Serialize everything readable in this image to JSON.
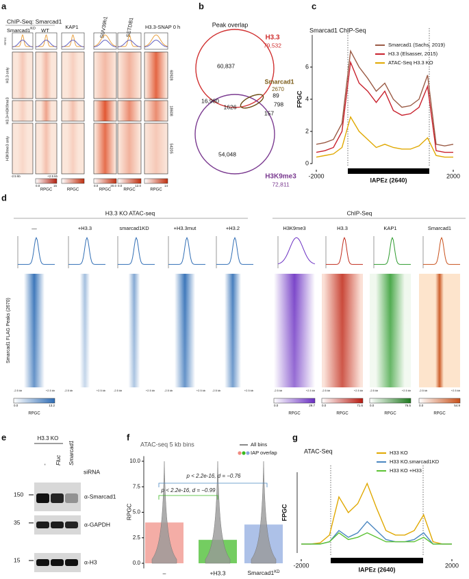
{
  "panel_a": {
    "letter": "a",
    "title": "ChIP-Seq: Smarcad1",
    "ko_label": {
      "base": "Smarcad1",
      "sup": "KO"
    },
    "columns": [
      "WT",
      "KAP1",
      "SUV39h1",
      "SETDB1",
      "H3.3-SNAP 0 h"
    ],
    "profile_axis": "RPGC",
    "rows": [
      "H3.3 only",
      "H3.3+H3K9me3",
      "H3K9me3 only"
    ],
    "row_counts": [
      "60928",
      "18608",
      "54205"
    ],
    "range_labels": [
      "-2.5 kb",
      "+2.5 kb"
    ],
    "colorbars": [
      {
        "min": "0.0",
        "max": "15",
        "label": "RPGC"
      },
      {
        "label": "RPGC"
      },
      {
        "min": "0.0",
        "max": "20.0",
        "label": "RPGC"
      },
      {
        "min": "0.0",
        "max": "12.0",
        "label": "RPGC"
      },
      {
        "max": "14",
        "label": "RPGC"
      }
    ]
  },
  "panel_b": {
    "letter": "b",
    "title": "Peak overlap",
    "sets": [
      {
        "name": "H3.3",
        "total": "79,532"
      },
      {
        "name": "Smarcad1",
        "total": "2670"
      },
      {
        "name": "H3K9me3",
        "total": "72,811"
      }
    ],
    "regions": [
      "60,837",
      "16,980",
      "1626",
      "89",
      "798",
      "157",
      "54,048"
    ]
  },
  "panel_c": {
    "letter": "c",
    "chart": {
      "type": "line",
      "title": "Smarcad1 ChIP-Seq",
      "y_label": "FPGC",
      "region_label": "IAPEz (2640)",
      "x": [
        -2000,
        -1750,
        -1500,
        -1250,
        -1000,
        -750,
        -500,
        -250,
        0,
        250,
        500,
        750,
        1000,
        1250,
        1500,
        1750,
        2000
      ],
      "xlim": [
        -2000,
        2000
      ],
      "xticks": [
        -2000,
        2000
      ],
      "ylim": [
        0,
        8
      ],
      "yticks": [
        0,
        2,
        4,
        6
      ],
      "series": [
        {
          "name": "Smarcad1 (Sachs, 2019)",
          "color": "#9a5a44",
          "values": [
            1.2,
            1.3,
            1.5,
            2.5,
            7.0,
            6.0,
            5.3,
            4.5,
            5.0,
            4.0,
            3.5,
            3.6,
            4.0,
            5.5,
            1.2,
            1.1,
            1.2
          ]
        },
        {
          "name": "H3.3 (Elsasser, 2015)",
          "color": "#c8202c",
          "values": [
            0.7,
            0.8,
            1.0,
            2.0,
            6.3,
            5.0,
            4.5,
            3.8,
            4.5,
            3.3,
            3.0,
            3.1,
            3.5,
            4.8,
            0.8,
            0.7,
            0.7
          ]
        },
        {
          "name": "ATAC-Seq H3.3 KO",
          "color": "#e0a800",
          "values": [
            0.4,
            0.5,
            0.6,
            1.0,
            2.9,
            2.0,
            1.5,
            1.0,
            1.2,
            1.0,
            0.9,
            0.9,
            1.1,
            1.6,
            0.5,
            0.4,
            0.4
          ]
        }
      ]
    }
  },
  "panel_d": {
    "letter": "d",
    "atac_header": "H3.3 KO ATAC-seq",
    "chip_header": "ChIP-Seq",
    "columns": [
      "—",
      "+H3.3",
      "smarcad1KD",
      "+H3.3mut",
      "+H3.2",
      "H3K9me3",
      "H3.3",
      "KAP1",
      "Smarcad1"
    ],
    "row_label": "Smarcad1 FLAG Peaks (2670)",
    "range_labels": [
      "-2.5 kb",
      "+2.5 kb"
    ],
    "colorbars": [
      {
        "min": "0.0",
        "max": "13.2",
        "label": "RPGC"
      },
      {
        "min": "0.0",
        "max": "29.7",
        "label": "RPGC"
      },
      {
        "min": "0.0",
        "max": "71.6",
        "label": "RPGC"
      },
      {
        "min": "0.0",
        "max": "76.5",
        "label": "RPGC"
      },
      {
        "min": "0.0",
        "max": "54.9",
        "label": "RPGC"
      }
    ]
  },
  "panel_e": {
    "letter": "e",
    "title": "H3.3 KO",
    "lanes": [
      "-",
      "Fluc",
      "Smarcad1"
    ],
    "treatment": "siRNA",
    "markers": [
      "150",
      "35",
      "15"
    ],
    "antibodies": [
      "α-Smarcad1",
      "α-GAPDH",
      "α-H3"
    ]
  },
  "panel_f": {
    "letter": "f",
    "title": "ATAC-seq 5 kb bins",
    "y_label": "RPGC",
    "legend": [
      "All bins",
      "IAP overlap"
    ],
    "categories": [
      "–",
      "+H3.3",
      {
        "base": "Smarcad1",
        "sup": "KD"
      }
    ],
    "ylim": [
      -0.5,
      10.5
    ],
    "yticks": [
      {
        "value": 0,
        "label": "0.0"
      },
      {
        "value": 2.5,
        "label": "2.5"
      },
      {
        "value": 5,
        "label": "5.0"
      },
      {
        "value": 7.5,
        "label": "7.5"
      },
      {
        "value": 10,
        "label": "10.0"
      }
    ],
    "tests": [
      "p < 2.2e-16, d = −0.76",
      "p < 2.2e-16, d = −0.99"
    ]
  },
  "panel_g": {
    "letter": "g",
    "chart": {
      "type": "line",
      "title": "ATAC-Seq",
      "y_label": "FPGC",
      "region_label": "IAPEz (2640)",
      "x": [
        -2000,
        -1750,
        -1500,
        -1250,
        -1000,
        -750,
        -500,
        -250,
        0,
        250,
        500,
        750,
        1000,
        1250,
        1500,
        1750,
        2000
      ],
      "xlim": [
        -2000,
        2000
      ],
      "xticks": [
        -2000,
        2000
      ],
      "ylim": [
        0,
        3.6
      ],
      "series": [
        {
          "name": "H33 KO",
          "color": "#e0a800",
          "values": [
            0.4,
            0.4,
            0.45,
            0.8,
            2.5,
            1.8,
            2.2,
            3.1,
            2.0,
            1.0,
            0.8,
            0.8,
            1.0,
            1.7,
            0.5,
            0.4,
            0.4
          ]
        },
        {
          "name": "H33 KO.smarcad1KD",
          "color": "#4a86c0",
          "values": [
            0.4,
            0.4,
            0.4,
            0.5,
            1.0,
            0.7,
            0.9,
            1.4,
            1.0,
            0.6,
            0.5,
            0.5,
            0.6,
            0.9,
            0.4,
            0.4,
            0.4
          ]
        },
        {
          "name": "H33 KO +H33",
          "color": "#5cc233",
          "values": [
            0.4,
            0.4,
            0.4,
            0.5,
            0.9,
            0.6,
            0.7,
            0.9,
            0.7,
            0.5,
            0.5,
            0.5,
            0.5,
            0.7,
            0.4,
            0.4,
            0.4
          ]
        }
      ]
    }
  }
}
